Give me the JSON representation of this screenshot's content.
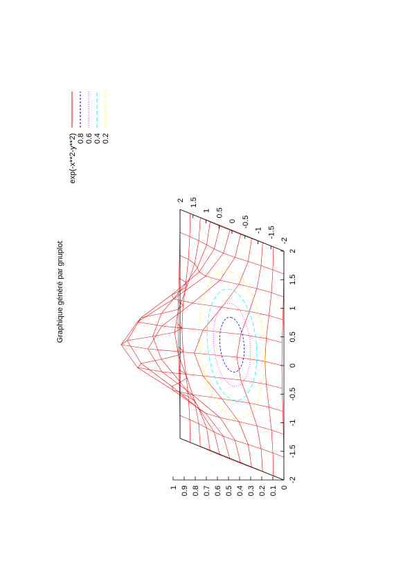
{
  "chart_data": {
    "type": "surface-3d",
    "title": "Graphique généré par gnuplot",
    "function": "exp(-x**2-y**2)",
    "x_range": [
      -2,
      2
    ],
    "y_range": [
      -2,
      2
    ],
    "z_range": [
      0,
      1
    ],
    "grid_samples": [
      -2,
      -1.6,
      -1.2,
      -0.8,
      -0.4,
      0,
      0.4,
      0.8,
      1.2,
      1.6,
      2
    ],
    "x_ticks": [
      "-2",
      "-1.5",
      "-1",
      "-0.5",
      "0",
      "0.5",
      "1",
      "1.5",
      "2"
    ],
    "y_ticks": [
      "-2",
      "-1.5",
      "-1",
      "-0.5",
      "0",
      "0.5",
      "1",
      "1.5",
      "2"
    ],
    "z_ticks": [
      "0",
      "0.1",
      "0.2",
      "0.3",
      "0.4",
      "0.5",
      "0.6",
      "0.7",
      "0.8",
      "0.9",
      "1"
    ],
    "contour_levels": [
      0.8,
      0.6,
      0.4,
      0.2
    ],
    "legend": [
      {
        "label": "exp(-x**2-y**2)",
        "color": "#ff0000",
        "dash": ""
      },
      {
        "label": "0.8",
        "color": "#0000ff",
        "dash": "3,2"
      },
      {
        "label": "0.6",
        "color": "#ff00ff",
        "dash": "1,2"
      },
      {
        "label": "0.4",
        "color": "#00ffff",
        "dash": "6,3"
      },
      {
        "label": "0.2",
        "color": "#ffff00",
        "dash": "4,3"
      }
    ],
    "orientation": "rotated 90° counter-clockwise (landscape page)",
    "legend_placement": "top-right"
  }
}
